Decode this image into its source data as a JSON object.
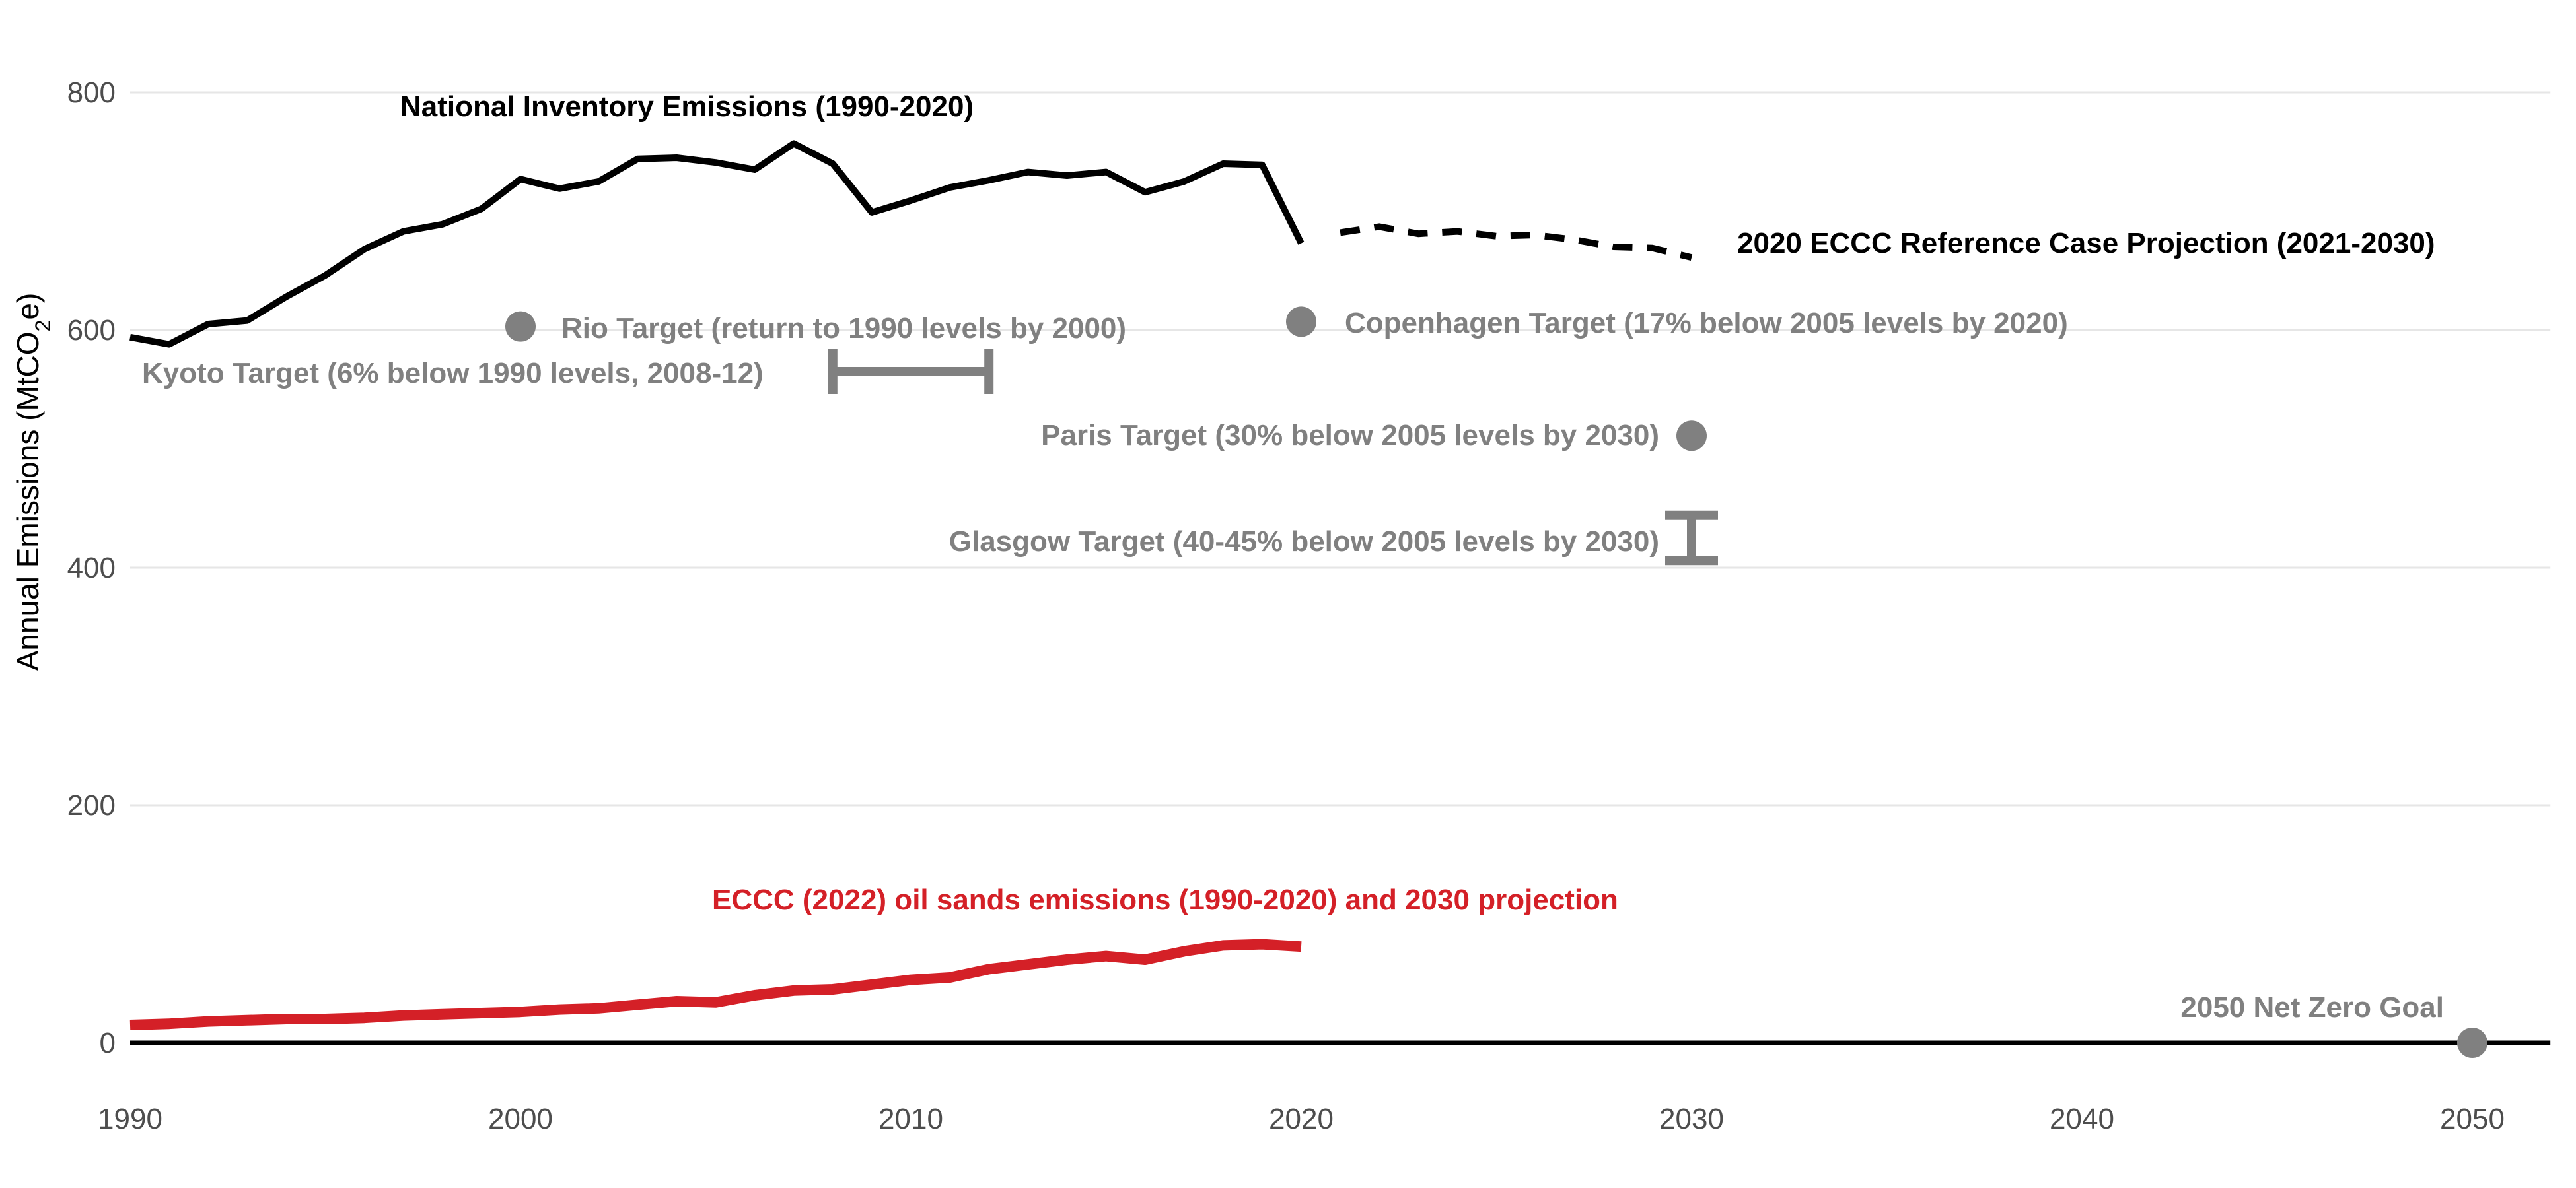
{
  "chart_data": {
    "type": "line",
    "ylabel": {
      "prefix": "Annual Emissions (MtCO",
      "sub": "2",
      "suffix": "e)"
    },
    "xlim": [
      1990,
      2052
    ],
    "ylim": [
      0,
      820
    ],
    "x_ticks": [
      1990,
      2000,
      2010,
      2020,
      2030,
      2040,
      2050
    ],
    "y_ticks": [
      0,
      200,
      400,
      600,
      800
    ],
    "grid": "horizontal",
    "colors": {
      "inventory": "#000000",
      "target": "#808080",
      "oil_sands": "#d42027",
      "gridline": "#e6e6e6"
    },
    "series": [
      {
        "name": "National Inventory Emissions (1990-2020)",
        "style": "solid",
        "x": [
          1990,
          1991,
          1992,
          1993,
          1994,
          1995,
          1996,
          1997,
          1998,
          1999,
          2000,
          2001,
          2002,
          2003,
          2004,
          2005,
          2006,
          2007,
          2008,
          2009,
          2010,
          2011,
          2012,
          2013,
          2014,
          2015,
          2016,
          2017,
          2018,
          2019,
          2020
        ],
        "values": [
          594,
          588,
          605,
          608,
          628,
          646,
          668,
          683,
          689,
          702,
          727,
          719,
          725,
          744,
          745,
          741,
          735,
          757,
          740,
          699,
          709,
          720,
          726,
          733,
          730,
          733,
          716,
          725,
          740,
          739,
          673
        ]
      },
      {
        "name": "2020 ECCC Reference Case Projection (2021-2030)",
        "style": "dashed",
        "x": [
          2021,
          2022,
          2023,
          2024,
          2025,
          2026,
          2027,
          2028,
          2029,
          2030
        ],
        "values": [
          682,
          687,
          681,
          683,
          679,
          680,
          676,
          670,
          669,
          661
        ]
      },
      {
        "name": "ECCC (2022) oil sands emissions (1990-2020) and 2030 projection",
        "style": "solid",
        "x": [
          1990,
          1991,
          1992,
          1993,
          1994,
          1995,
          1996,
          1997,
          1998,
          1999,
          2000,
          2001,
          2002,
          2003,
          2004,
          2005,
          2006,
          2007,
          2008,
          2009,
          2010,
          2011,
          2012,
          2013,
          2014,
          2015,
          2016,
          2017,
          2018,
          2019,
          2020
        ],
        "values": [
          15,
          16,
          18,
          19,
          20,
          20,
          21,
          23,
          24,
          25,
          26,
          28,
          29,
          32,
          35,
          34,
          40,
          44,
          45,
          49,
          53,
          55,
          62,
          66,
          70,
          73,
          70,
          77,
          82,
          83,
          81
        ]
      }
    ],
    "targets": [
      {
        "name": "Rio Target (return to 1990 levels by 2000)",
        "kind": "point",
        "x": 2000,
        "y": 603
      },
      {
        "name": "Kyoto Target (6% below 1990 levels, 2008-12)",
        "kind": "hrange",
        "x": [
          2008,
          2012
        ],
        "y": 565
      },
      {
        "name": "Copenhagen Target (17% below 2005 levels by 2020)",
        "kind": "point",
        "x": 2020,
        "y": 607
      },
      {
        "name": "Paris Target (30% below 2005 levels by 2030)",
        "kind": "point",
        "x": 2030,
        "y": 511
      },
      {
        "name": "Glasgow Target (40-45% below 2005 levels by 2030)",
        "kind": "vrange",
        "x": 2030,
        "y": [
          406,
          444
        ]
      },
      {
        "name": "2050 Net Zero Goal",
        "kind": "point",
        "x": 2050,
        "y": 0
      }
    ]
  }
}
